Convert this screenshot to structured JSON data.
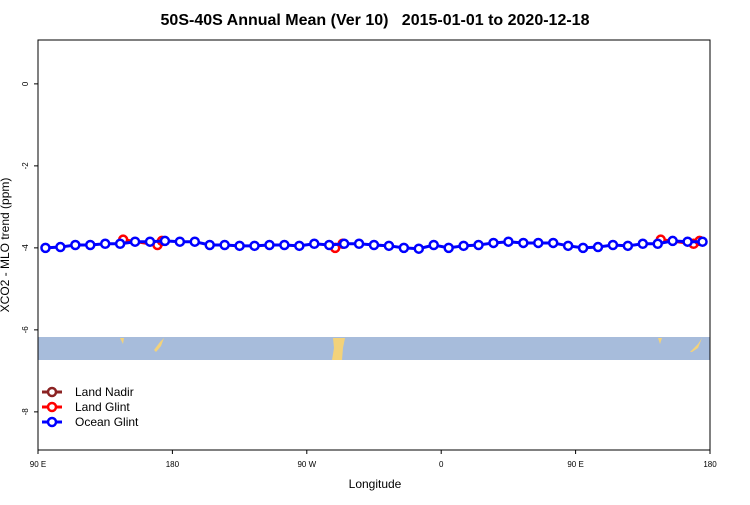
{
  "chart_data": {
    "type": "line",
    "title": "50S-40S Annual Mean (Ver 10)   2015-01-01 to 2020-12-18",
    "xlabel": "Longitude",
    "ylabel": "XCO2 - MLO trend (ppm)",
    "xlim": [
      90,
      540
    ],
    "xticks": [
      {
        "value": 90,
        "label": "90 E"
      },
      {
        "value": 180,
        "label": "180"
      },
      {
        "value": 270,
        "label": "90 W"
      },
      {
        "value": 360,
        "label": "0"
      },
      {
        "value": 450,
        "label": "90 E"
      },
      {
        "value": 540,
        "label": "180"
      }
    ],
    "ylim": [
      -8.93,
      1.07
    ],
    "yticks": [
      0,
      -2,
      -4,
      -6,
      -8
    ],
    "legend": "bottom-left",
    "series": [
      {
        "name": "Land Nadir",
        "color": "#8b2323",
        "x": [],
        "values": []
      },
      {
        "name": "Land Glint",
        "color": "#ff0000",
        "x": [
          147,
          170,
          173,
          null,
          289,
          294,
          null,
          507,
          529,
          533
        ],
        "values": [
          -3.8,
          -3.93,
          -3.83,
          null,
          -4.0,
          -3.9,
          null,
          -3.8,
          -3.9,
          -3.83
        ]
      },
      {
        "name": "Ocean Glint",
        "color": "#0000ff",
        "x": [
          95,
          105,
          115,
          125,
          135,
          145,
          155,
          165,
          175,
          185,
          195,
          205,
          215,
          225,
          235,
          245,
          255,
          265,
          275,
          285,
          295,
          305,
          315,
          325,
          335,
          345,
          355,
          365,
          375,
          385,
          395,
          405,
          415,
          425,
          435,
          445,
          455,
          465,
          475,
          485,
          495,
          505,
          515,
          525,
          535
        ],
        "values": [
          -4.0,
          -3.98,
          -3.93,
          -3.93,
          -3.9,
          -3.9,
          -3.85,
          -3.85,
          -3.83,
          -3.85,
          -3.85,
          -3.93,
          -3.93,
          -3.95,
          -3.95,
          -3.93,
          -3.93,
          -3.95,
          -3.9,
          -3.93,
          -3.9,
          -3.9,
          -3.93,
          -3.95,
          -4.0,
          -4.02,
          -3.93,
          -4.0,
          -3.95,
          -3.93,
          -3.88,
          -3.85,
          -3.88,
          -3.88,
          -3.88,
          -3.95,
          -4.0,
          -3.98,
          -3.93,
          -3.95,
          -3.9,
          -3.9,
          -3.83,
          -3.85,
          -3.85
        ]
      }
    ]
  }
}
